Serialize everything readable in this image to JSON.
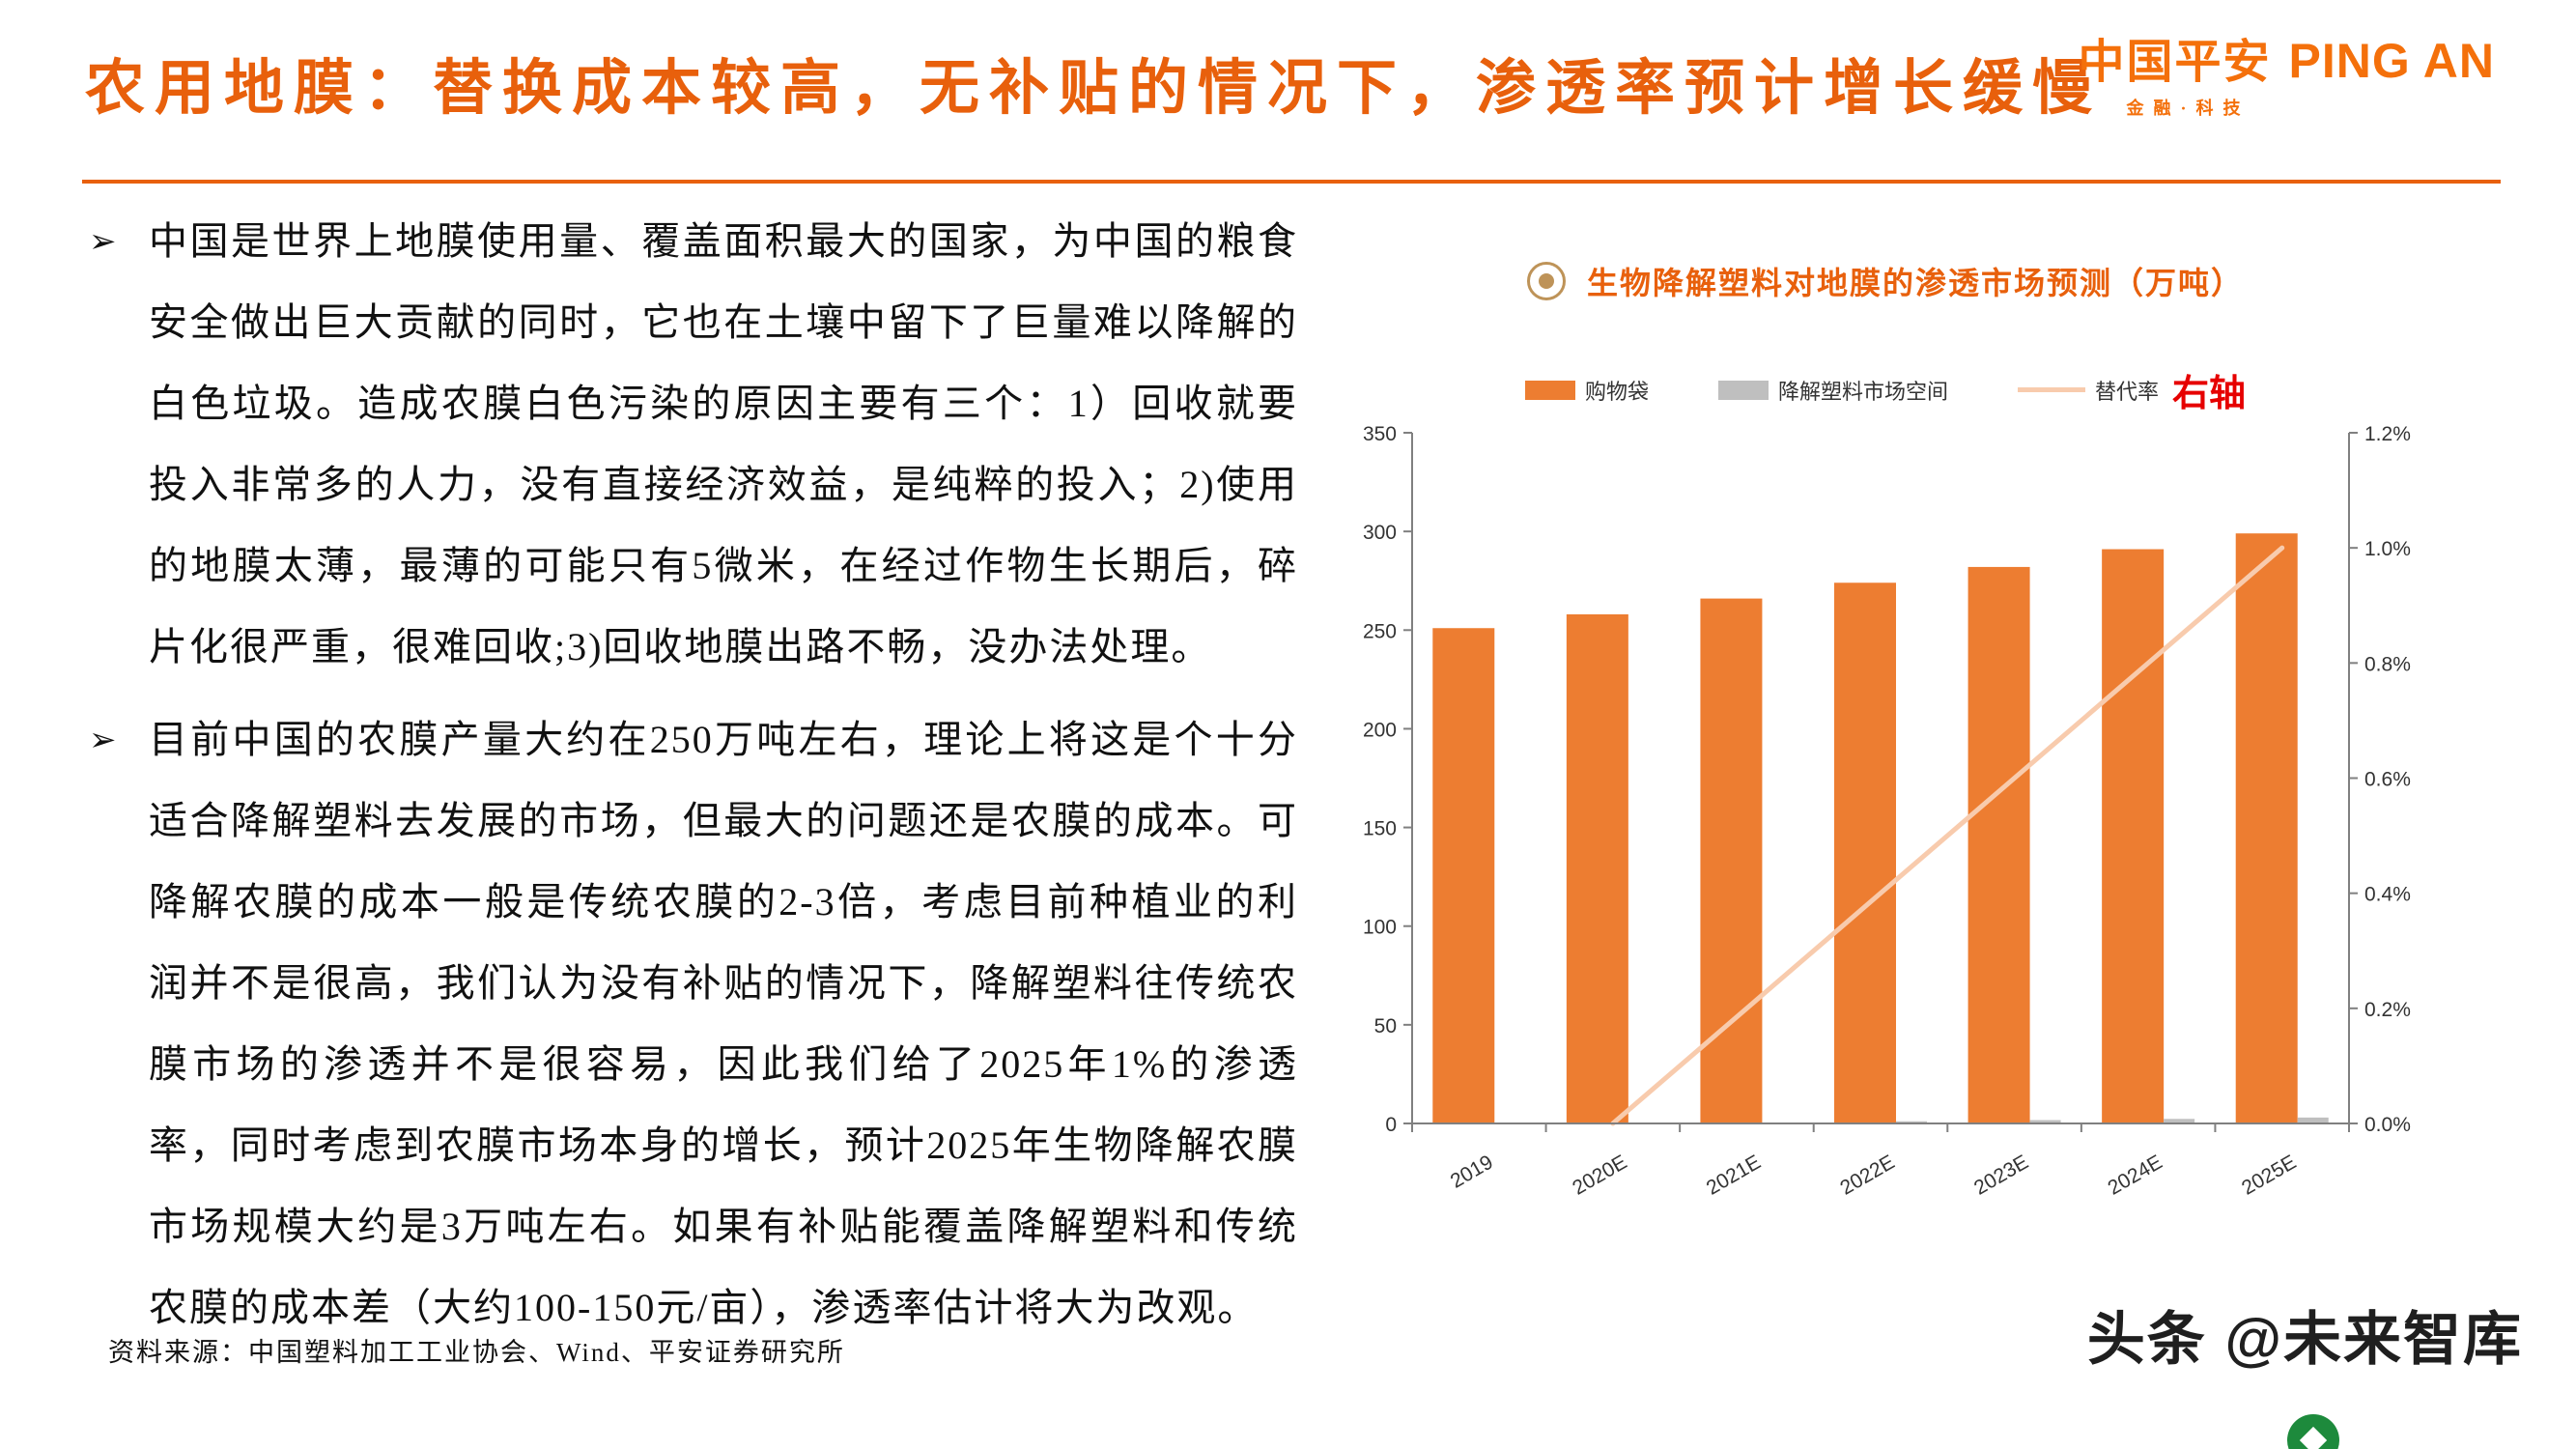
{
  "header": {
    "title": "农用地膜：替换成本较高，无补贴的情况下，渗透率预计增长缓慢",
    "logo": {
      "cn": "中国平安",
      "en": "PING AN",
      "sub": "金融·科技"
    }
  },
  "bullet_marker": "➢",
  "bullets": [
    "中国是世界上地膜使用量、覆盖面积最大的国家，为中国的粮食安全做出巨大贡献的同时，它也在土壤中留下了巨量难以降解的白色垃圾。造成农膜白色污染的原因主要有三个：1）回收就要投入非常多的人力，没有直接经济效益，是纯粹的投入；2)使用的地膜太薄，最薄的可能只有5微米，在经过作物生长期后，碎片化很严重，很难回收;3)回收地膜出路不畅，没办法处理。",
    "目前中国的农膜产量大约在250万吨左右，理论上将这是个十分适合降解塑料去发展的市场，但最大的问题还是农膜的成本。可降解农膜的成本一般是传统农膜的2-3倍，考虑目前种植业的利润并不是很高，我们认为没有补贴的情况下，降解塑料往传统农膜市场的渗透并不是很容易，因此我们给了2025年1%的渗透率，同时考虑到农膜市场本身的增长，预计2025年生物降解农膜市场规模大约是3万吨左右。如果有补贴能覆盖降解塑料和传统农膜的成本差（大约100-150元/亩），渗透率估计将大为改观。"
  ],
  "chart": {
    "title": "生物降解塑料对地膜的渗透市场预测（万吨）",
    "legend": [
      {
        "label": "购物袋",
        "color": "#ED7D31",
        "type": "bar"
      },
      {
        "label": "降解塑料市场空间",
        "color": "#BFBFBF",
        "type": "bar"
      },
      {
        "label": "替代率",
        "color": "#F8CBAD",
        "type": "line"
      }
    ],
    "right_axis_note": "右轴"
  },
  "chart_data": {
    "type": "bar",
    "title": "生物降解塑料对地膜的渗透市场预测（万吨）",
    "categories": [
      "2019",
      "2020E",
      "2021E",
      "2022E",
      "2023E",
      "2024E",
      "2025E"
    ],
    "series": [
      {
        "name": "购物袋",
        "type": "bar",
        "axis": "left",
        "color": "#ED7D31",
        "values": [
          251,
          258,
          266,
          274,
          282,
          291,
          299
        ]
      },
      {
        "name": "降解塑料市场空间",
        "type": "bar",
        "axis": "left",
        "color": "#BFBFBF",
        "values": [
          0,
          0,
          0.5,
          1.1,
          1.7,
          2.3,
          3.0
        ]
      },
      {
        "name": "替代率",
        "type": "line",
        "axis": "right",
        "color": "#F8CBAD",
        "values": [
          null,
          0,
          0.2,
          0.4,
          0.6,
          0.8,
          1.0
        ]
      }
    ],
    "left_axis": {
      "min": 0,
      "max": 350,
      "step": 50,
      "ticks": [
        "0",
        "50",
        "100",
        "150",
        "200",
        "250",
        "300",
        "350"
      ]
    },
    "right_axis": {
      "min": 0,
      "max": 1.2,
      "step": 0.2,
      "ticks": [
        "0.0%",
        "0.2%",
        "0.4%",
        "0.6%",
        "0.8%",
        "1.0%",
        "1.2%"
      ]
    },
    "legend_position": "top",
    "grid": false
  },
  "colors": {
    "accent_orange": "#E8600C",
    "logo_orange": "#F4700B",
    "bar_orange": "#ED7D31",
    "bar_gray": "#BFBFBF",
    "line_peach": "#F8CBAD",
    "note_red": "#E60000",
    "badge_green": "#1d8a3c"
  },
  "footer": {
    "source": "资料来源：中国塑料加工工业协会、Wind、平安证券研究所",
    "watermark": "头条 @未来智库"
  }
}
